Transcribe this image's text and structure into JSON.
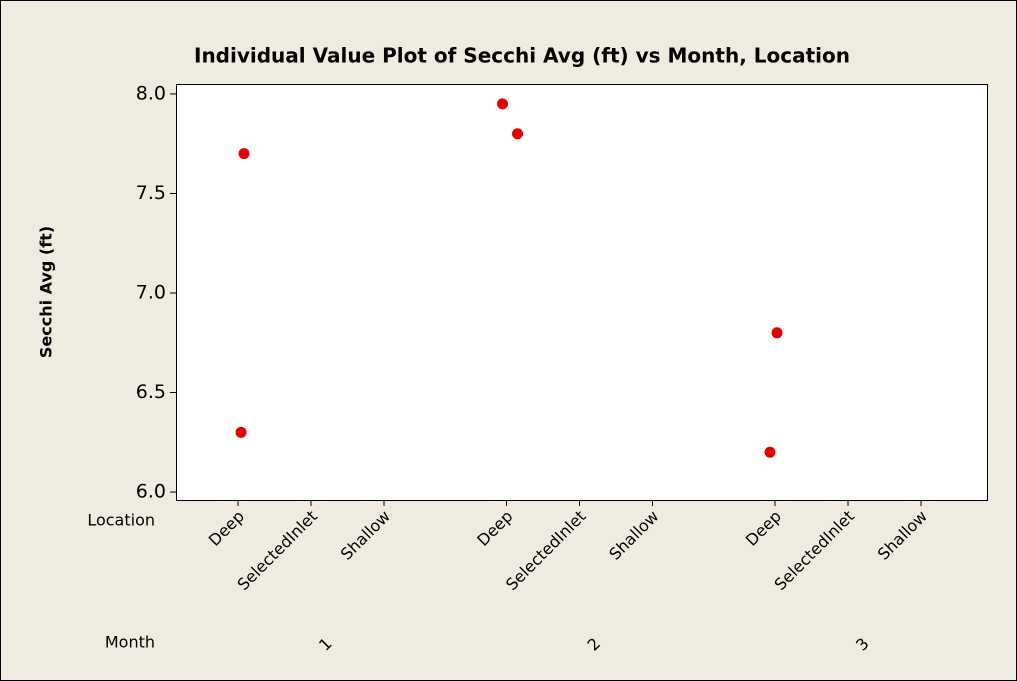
{
  "chart_data": {
    "type": "individual_value",
    "title": "Individual Value Plot of Secchi Avg (ft) vs Month, Location",
    "y_label": "Secchi Avg (ft)",
    "x_level_names": [
      "Location",
      "Month"
    ],
    "categories": [
      "Deep",
      "SelectedInlet",
      "Shallow",
      "Deep",
      "SelectedInlet",
      "Shallow",
      "Deep",
      "SelectedInlet",
      "Shallow"
    ],
    "groups": [
      "1",
      "2",
      "3"
    ],
    "values": [
      [
        7.7,
        6.3
      ],
      [],
      [],
      [
        7.95,
        7.8
      ],
      [],
      [],
      [
        6.8,
        6.2
      ],
      [],
      []
    ],
    "color": "#e60000",
    "ylim": [
      5.96,
      8.05
    ],
    "yticks": [
      {
        "value": 6,
        "label": "6.0"
      },
      6.5,
      {
        "value": 7,
        "label": "7.0"
      },
      7.5,
      {
        "value": 8,
        "label": "8.0"
      }
    ]
  }
}
